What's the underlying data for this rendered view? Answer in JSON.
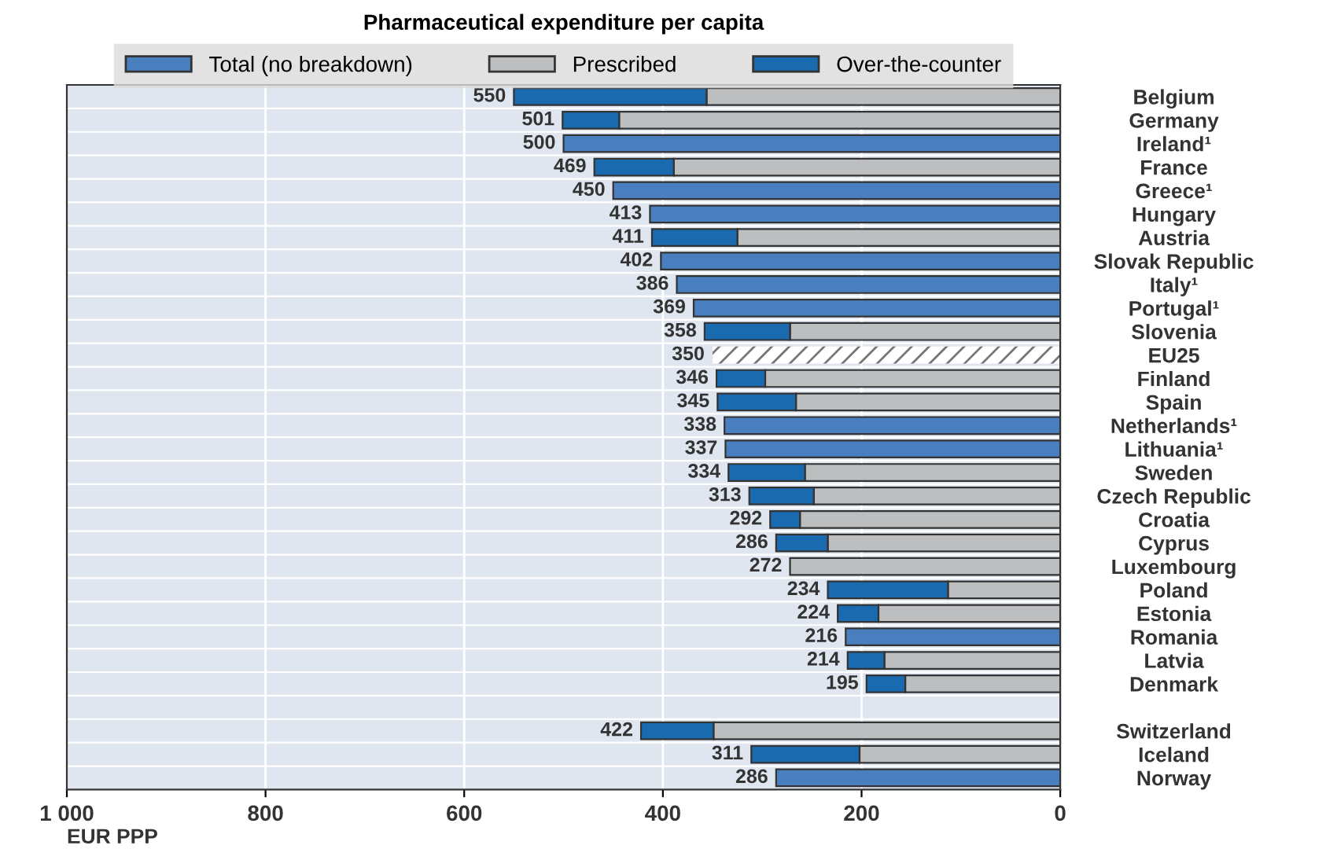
{
  "chart_data": {
    "type": "bar",
    "orientation": "horizontal",
    "stacked": true,
    "title": "Pharmaceutical expenditure per capita",
    "xlabel": "EUR PPP",
    "categories": [
      "Belgium",
      "Germany",
      "Ireland¹",
      "France",
      "Greece¹",
      "Hungary",
      "Austria",
      "Slovak Republic",
      "Italy¹",
      "Portugal¹",
      "Slovenia",
      "EU25",
      "Finland",
      "Spain",
      "Netherlands¹",
      "Lithuania¹",
      "Sweden",
      "Czech Republic",
      "Croatia",
      "Cyprus",
      "Luxembourg",
      "Poland",
      "Estonia",
      "Romania",
      "Latvia",
      "Denmark",
      null,
      "Switzerland",
      "Iceland",
      "Norway"
    ],
    "series": [
      {
        "name": "Total (no breakdown)",
        "color": "#4a7fbf",
        "values": [
          null,
          null,
          500,
          null,
          450,
          413,
          null,
          402,
          386,
          369,
          null,
          null,
          null,
          null,
          338,
          337,
          null,
          null,
          null,
          null,
          null,
          null,
          null,
          216,
          null,
          null,
          null,
          null,
          null,
          286
        ]
      },
      {
        "name": "Prescribed",
        "color": "#bcbec0",
        "values": [
          356,
          444,
          null,
          389,
          null,
          null,
          325,
          null,
          null,
          null,
          272,
          null,
          297,
          266,
          null,
          null,
          257,
          248,
          262,
          234,
          272,
          113,
          183,
          null,
          177,
          156,
          null,
          349,
          202,
          null
        ]
      },
      {
        "name": "Over-the-counter",
        "color": "#1a6aaf",
        "values": [
          194,
          57,
          null,
          80,
          null,
          null,
          86,
          null,
          null,
          null,
          86,
          null,
          49,
          79,
          null,
          null,
          77,
          65,
          30,
          52,
          null,
          121,
          41,
          null,
          37,
          39,
          null,
          73,
          109,
          null
        ]
      },
      {
        "color": "#ffffff",
        "values": [
          null,
          null,
          null,
          null,
          null,
          null,
          null,
          null,
          null,
          null,
          null,
          350,
          null,
          null,
          null,
          null,
          null,
          null,
          null,
          null,
          null,
          null,
          null,
          null,
          null,
          null,
          null,
          null,
          null,
          null
        ]
      }
    ],
    "totals": [
      "550",
      "501",
      "500",
      "469",
      "450",
      "413",
      "411",
      "402",
      "386",
      "369",
      "358",
      "350",
      "346",
      "345",
      "338",
      "337",
      "334",
      "313",
      "292",
      "286",
      "272",
      "234",
      "224",
      "216",
      "214",
      "195",
      null,
      "422",
      "311",
      "286"
    ],
    "xlim": [
      1000,
      0
    ],
    "xticks": [
      {
        "value": 1000,
        "label": "1 000"
      },
      800,
      600,
      400,
      200,
      0
    ],
    "grid": "x",
    "legend": "top"
  }
}
